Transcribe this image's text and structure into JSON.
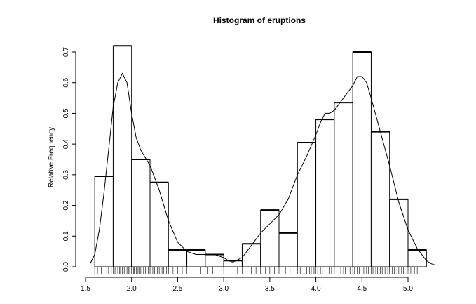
{
  "chart_data": {
    "type": "bar",
    "title": "Histogram of eruptions",
    "xlabel": "",
    "ylabel": "Relative Frequency",
    "xlim": [
      1.5,
      5.3
    ],
    "ylim": [
      0,
      0.7
    ],
    "x_ticks": [
      "1.5",
      "2.0",
      "2.5",
      "3.0",
      "3.5",
      "4.0",
      "4.5",
      "5.0"
    ],
    "y_ticks": [
      "0.0",
      "0.1",
      "0.2",
      "0.3",
      "0.4",
      "0.5",
      "0.6",
      "0.7"
    ],
    "bin_edges": [
      1.6,
      1.8,
      2.0,
      2.2,
      2.4,
      2.6,
      2.8,
      3.0,
      3.2,
      3.4,
      3.6,
      3.8,
      4.0,
      4.2,
      4.4,
      4.6,
      4.8,
      5.0,
      5.2
    ],
    "values": [
      0.295,
      0.72,
      0.35,
      0.275,
      0.055,
      0.055,
      0.04,
      0.02,
      0.075,
      0.185,
      0.11,
      0.405,
      0.48,
      0.535,
      0.7,
      0.44,
      0.22,
      0.055
    ],
    "density": {
      "x": [
        1.55,
        1.6,
        1.65,
        1.7,
        1.75,
        1.8,
        1.85,
        1.9,
        1.95,
        2.0,
        2.05,
        2.1,
        2.2,
        2.3,
        2.4,
        2.5,
        2.6,
        2.7,
        2.8,
        2.9,
        3.0,
        3.05,
        3.1,
        3.2,
        3.3,
        3.4,
        3.5,
        3.6,
        3.7,
        3.8,
        3.9,
        4.0,
        4.05,
        4.1,
        4.15,
        4.2,
        4.3,
        4.4,
        4.45,
        4.5,
        4.55,
        4.6,
        4.7,
        4.8,
        4.9,
        5.0,
        5.1,
        5.2,
        5.25,
        5.3
      ],
      "y": [
        0.01,
        0.04,
        0.12,
        0.24,
        0.38,
        0.52,
        0.6,
        0.63,
        0.6,
        0.5,
        0.42,
        0.38,
        0.33,
        0.25,
        0.15,
        0.08,
        0.05,
        0.04,
        0.04,
        0.04,
        0.03,
        0.02,
        0.015,
        0.03,
        0.07,
        0.11,
        0.14,
        0.17,
        0.22,
        0.3,
        0.36,
        0.43,
        0.47,
        0.5,
        0.5,
        0.51,
        0.55,
        0.59,
        0.62,
        0.62,
        0.6,
        0.55,
        0.44,
        0.33,
        0.21,
        0.12,
        0.06,
        0.02,
        0.01,
        0.005
      ]
    },
    "rug": [
      1.6,
      1.63,
      1.67,
      1.7,
      1.73,
      1.75,
      1.78,
      1.8,
      1.82,
      1.83,
      1.85,
      1.87,
      1.88,
      1.9,
      1.92,
      1.93,
      1.95,
      1.97,
      1.98,
      2.0,
      2.02,
      2.03,
      2.05,
      2.07,
      2.08,
      2.1,
      2.13,
      2.15,
      2.18,
      2.2,
      2.23,
      2.25,
      2.28,
      2.3,
      2.33,
      2.35,
      2.38,
      2.4,
      2.45,
      2.5,
      2.55,
      2.6,
      2.7,
      2.75,
      2.82,
      2.88,
      2.95,
      3.0,
      3.08,
      3.15,
      3.2,
      3.3,
      3.35,
      3.4,
      3.45,
      3.5,
      3.55,
      3.6,
      3.67,
      3.72,
      3.8,
      3.83,
      3.87,
      3.9,
      3.93,
      3.95,
      3.98,
      4.0,
      4.02,
      4.05,
      4.07,
      4.1,
      4.12,
      4.15,
      4.17,
      4.2,
      4.22,
      4.25,
      4.27,
      4.3,
      4.32,
      4.35,
      4.37,
      4.4,
      4.42,
      4.45,
      4.47,
      4.5,
      4.52,
      4.55,
      4.57,
      4.6,
      4.62,
      4.65,
      4.67,
      4.7,
      4.72,
      4.75,
      4.78,
      4.8,
      4.83,
      4.85,
      4.88,
      4.9,
      4.93,
      4.95,
      5.0,
      5.03,
      5.07,
      5.1
    ]
  }
}
